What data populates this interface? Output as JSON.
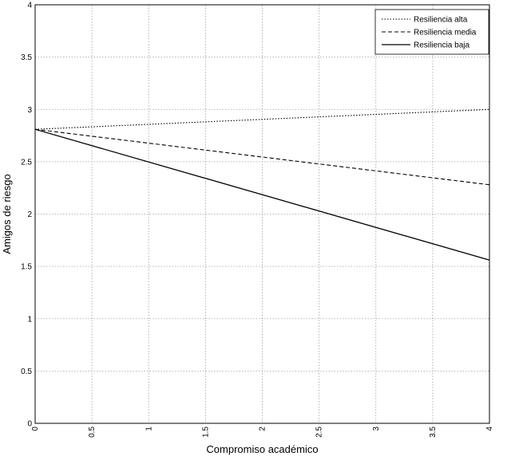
{
  "chart_data": {
    "type": "line",
    "title": "",
    "xlabel": "Compromiso académico",
    "ylabel": "Amigos de riesgo",
    "xlim": [
      0,
      4
    ],
    "ylim": [
      0,
      4
    ],
    "x_ticks": [
      0,
      0.5,
      1,
      1.5,
      2,
      2.5,
      3,
      3.5,
      4
    ],
    "y_ticks": [
      0,
      0.5,
      1,
      1.5,
      2,
      2.5,
      3,
      3.5,
      4
    ],
    "x_tick_labels": [
      "0",
      "0.5",
      "1",
      "1.5",
      "2",
      "2.5",
      "3",
      "3.5",
      "4"
    ],
    "y_tick_labels": [
      "0",
      "0.5",
      "1",
      "1.5",
      "2",
      "2.5",
      "3",
      "3.5",
      "4"
    ],
    "grid": true,
    "grid_style": "dotted",
    "legend_position": "top-right",
    "series": [
      {
        "name": "Resiliencia alta",
        "style": "dotted",
        "x": [
          0,
          4
        ],
        "y": [
          2.81,
          3.0
        ]
      },
      {
        "name": "Resiliencia media",
        "style": "dashed",
        "x": [
          0,
          4
        ],
        "y": [
          2.81,
          2.28
        ]
      },
      {
        "name": "Resiliencia baja",
        "style": "solid",
        "x": [
          0,
          4
        ],
        "y": [
          2.81,
          1.56
        ]
      }
    ],
    "colors": {
      "line": "#000000",
      "grid": "#a0a0a0",
      "axis": "#000000",
      "background": "#ffffff"
    }
  }
}
